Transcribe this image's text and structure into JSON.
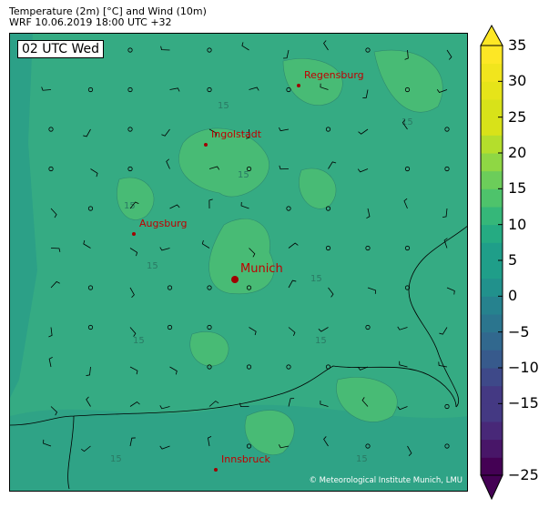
{
  "header": {
    "line1": "Temperature (2m) [°C] and Wind (10m)",
    "line2": "WRF 10.06.2019 18:00 UTC +32"
  },
  "map": {
    "time_label": "02 UTC Wed",
    "base_color": "#35ab83",
    "warm_color": "#48bb75",
    "cool_color": "#27998a",
    "cities": [
      {
        "name": "Regensburg",
        "size": "small"
      },
      {
        "name": "Ingolstadt",
        "size": "small"
      },
      {
        "name": "Augsburg",
        "size": "small"
      },
      {
        "name": "Munich",
        "size": "large"
      },
      {
        "name": "Innsbruck",
        "size": "small"
      }
    ],
    "contour_label": "15",
    "copyright": "© Meteorological Institute Munich, LMU"
  },
  "colorbar": {
    "min": -25,
    "max": 35,
    "step": 2.5,
    "extend": "both",
    "colormap": "viridis",
    "ticks": [
      "35",
      "30",
      "25",
      "20",
      "15",
      "10",
      "5",
      "0",
      "−5",
      "−10",
      "−15",
      "−25"
    ],
    "tick_values": [
      35,
      30,
      25,
      20,
      15,
      10,
      5,
      0,
      -5,
      -10,
      -15,
      -25
    ]
  }
}
